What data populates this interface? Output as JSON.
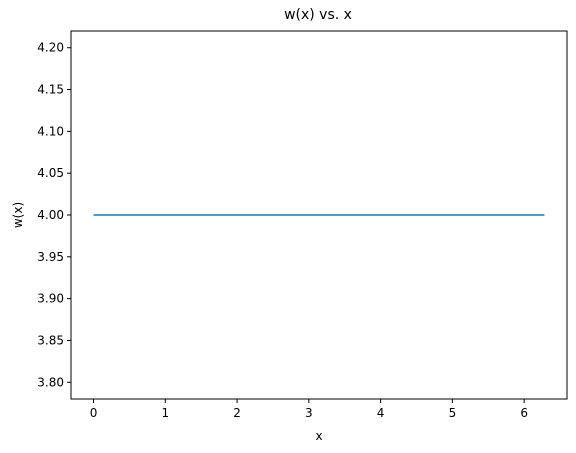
{
  "chart_data": {
    "type": "line",
    "title": "w(x) vs. x",
    "xlabel": "x",
    "ylabel": "w(x)",
    "xlim": [
      -0.314,
      6.597
    ],
    "ylim": [
      3.78,
      4.22
    ],
    "xticks": [
      0,
      1,
      2,
      3,
      4,
      5,
      6
    ],
    "xtick_labels": [
      "0",
      "1",
      "2",
      "3",
      "4",
      "5",
      "6"
    ],
    "yticks": [
      3.8,
      3.85,
      3.9,
      3.95,
      4.0,
      4.05,
      4.1,
      4.15,
      4.2
    ],
    "ytick_labels": [
      "3.80",
      "3.85",
      "3.90",
      "3.95",
      "4.00",
      "4.05",
      "4.10",
      "4.15",
      "4.20"
    ],
    "grid": false,
    "legend": "none",
    "series": [
      {
        "color": "#1f77b4",
        "x": [
          0,
          6.283
        ],
        "y": [
          4.0,
          4.0
        ]
      }
    ]
  }
}
